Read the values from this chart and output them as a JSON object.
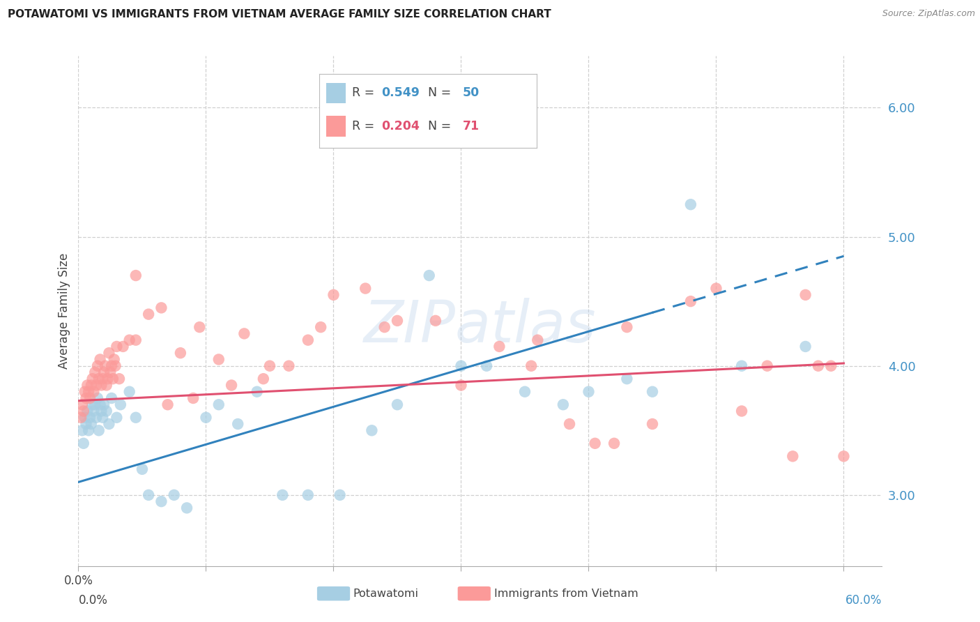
{
  "title": "POTAWATOMI VS IMMIGRANTS FROM VIETNAM AVERAGE FAMILY SIZE CORRELATION CHART",
  "source": "Source: ZipAtlas.com",
  "ylabel": "Average Family Size",
  "watermark": "ZIPatlas",
  "xlim": [
    0.0,
    63.0
  ],
  "ylim": [
    2.45,
    6.4
  ],
  "yticks_right": [
    3.0,
    4.0,
    5.0,
    6.0
  ],
  "xtick_positions": [
    0.0,
    10.0,
    20.0,
    30.0,
    40.0,
    50.0,
    60.0
  ],
  "x_label_only_ends": true,
  "legend_blue_R": "0.549",
  "legend_blue_N": "50",
  "legend_pink_R": "0.204",
  "legend_pink_N": "71",
  "blue_scatter_color": "#a6cee3",
  "pink_scatter_color": "#fb9a99",
  "blue_line_color": "#3182bd",
  "pink_line_color": "#e05070",
  "title_color": "#222222",
  "right_axis_label_color": "#4292c6",
  "grid_color": "#d0d0d0",
  "background_color": "#ffffff",
  "blue_line_start_x": 0.0,
  "blue_line_start_y": 3.1,
  "blue_line_solid_end_x": 45.0,
  "blue_line_end_x": 60.0,
  "blue_line_end_y": 4.85,
  "pink_line_start_x": 0.0,
  "pink_line_start_y": 3.73,
  "pink_line_end_x": 60.0,
  "pink_line_end_y": 4.02,
  "potawatomi_x": [
    0.3,
    0.4,
    0.5,
    0.6,
    0.7,
    0.8,
    0.9,
    1.0,
    1.1,
    1.2,
    1.3,
    1.4,
    1.5,
    1.6,
    1.7,
    1.8,
    1.9,
    2.0,
    2.2,
    2.4,
    2.6,
    3.0,
    3.3,
    4.0,
    4.5,
    5.0,
    5.5,
    6.5,
    7.5,
    8.5,
    10.0,
    11.0,
    12.5,
    14.0,
    16.0,
    18.0,
    20.5,
    23.0,
    25.0,
    27.5,
    30.0,
    32.0,
    35.0,
    38.0,
    40.0,
    43.0,
    45.0,
    48.0,
    52.0,
    57.0
  ],
  "potawatomi_y": [
    3.5,
    3.4,
    3.6,
    3.55,
    3.65,
    3.5,
    3.6,
    3.55,
    3.7,
    3.65,
    3.7,
    3.6,
    3.75,
    3.5,
    3.7,
    3.65,
    3.6,
    3.7,
    3.65,
    3.55,
    3.75,
    3.6,
    3.7,
    3.8,
    3.6,
    3.2,
    3.0,
    2.95,
    3.0,
    2.9,
    3.6,
    3.7,
    3.55,
    3.8,
    3.0,
    3.0,
    3.0,
    3.5,
    3.7,
    4.7,
    4.0,
    4.0,
    3.8,
    3.7,
    3.8,
    3.9,
    3.8,
    5.25,
    4.0,
    4.15
  ],
  "vietnam_x": [
    0.2,
    0.3,
    0.4,
    0.5,
    0.6,
    0.7,
    0.8,
    0.9,
    1.0,
    1.1,
    1.2,
    1.3,
    1.4,
    1.5,
    1.6,
    1.7,
    1.8,
    1.9,
    2.0,
    2.1,
    2.2,
    2.3,
    2.4,
    2.5,
    2.6,
    2.7,
    2.8,
    2.9,
    3.0,
    3.2,
    3.5,
    4.0,
    4.5,
    5.5,
    6.5,
    8.0,
    9.5,
    11.0,
    13.0,
    15.0,
    18.0,
    20.0,
    22.5,
    25.0,
    28.0,
    30.0,
    33.0,
    36.0,
    38.5,
    40.5,
    43.0,
    45.0,
    48.0,
    50.0,
    52.0,
    54.0,
    56.0,
    57.0,
    58.0,
    59.0,
    60.0,
    42.0,
    35.5,
    24.0,
    19.0,
    16.5,
    14.5,
    12.0,
    9.0,
    7.0,
    4.5
  ],
  "vietnam_y": [
    3.6,
    3.7,
    3.65,
    3.8,
    3.75,
    3.85,
    3.8,
    3.75,
    3.85,
    3.9,
    3.8,
    3.95,
    3.85,
    4.0,
    3.9,
    4.05,
    3.85,
    3.9,
    3.95,
    4.0,
    3.85,
    3.9,
    4.1,
    3.95,
    4.0,
    3.9,
    4.05,
    4.0,
    4.15,
    3.9,
    4.15,
    4.2,
    4.2,
    4.4,
    4.45,
    4.1,
    4.3,
    4.05,
    4.25,
    4.0,
    4.2,
    4.55,
    4.6,
    4.35,
    4.35,
    3.85,
    4.15,
    4.2,
    3.55,
    3.4,
    4.3,
    3.55,
    4.5,
    4.6,
    3.65,
    4.0,
    3.3,
    4.55,
    4.0,
    4.0,
    3.3,
    3.4,
    4.0,
    4.3,
    4.3,
    4.0,
    3.9,
    3.85,
    3.75,
    3.7,
    4.7
  ]
}
